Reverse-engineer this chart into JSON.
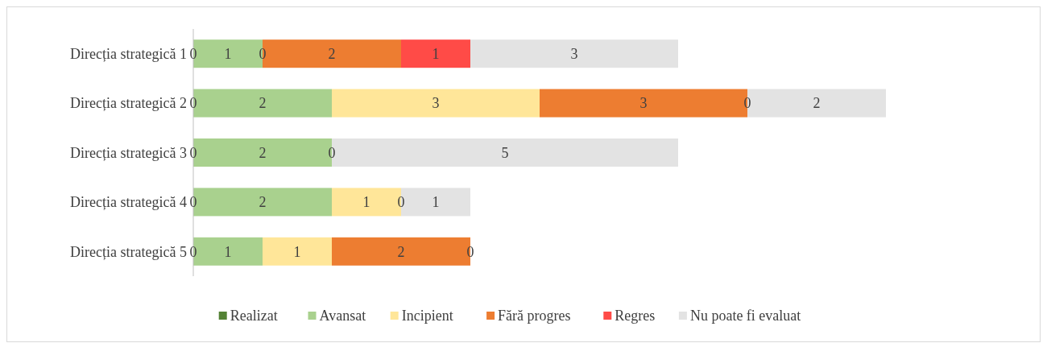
{
  "chart_data": {
    "type": "bar",
    "orientation": "horizontal",
    "stacked": true,
    "legend": "bottom",
    "categories": [
      "Direcția strategică 1",
      "Direcția strategică 2",
      "Direcția strategică 3",
      "Direcția strategică 4",
      "Direcția strategică 5"
    ],
    "series": [
      {
        "name": "Realizat",
        "color": "#548235",
        "values": [
          0,
          0,
          0,
          0,
          0
        ],
        "value_labels": [
          "0",
          "0",
          "0",
          "0",
          "0"
        ]
      },
      {
        "name": "Avansat",
        "color": "#a9d18e",
        "values": [
          1,
          2,
          2,
          2,
          1
        ],
        "value_labels": [
          "1",
          "2",
          "2",
          "2",
          "1"
        ]
      },
      {
        "name": "Incipient",
        "color": "#ffe699",
        "values": [
          0,
          3,
          0,
          1,
          1
        ],
        "value_labels": [
          "0",
          "3",
          "0",
          "1",
          "1"
        ]
      },
      {
        "name": "Fără progres",
        "color": "#ed7d31",
        "values": [
          2,
          3,
          0,
          0,
          2
        ],
        "value_labels": [
          "2",
          "3",
          null,
          "0",
          "2"
        ]
      },
      {
        "name": "Regres",
        "color": "#ff4b47",
        "values": [
          1,
          0,
          null,
          null,
          0
        ],
        "value_labels": [
          "1",
          "0",
          null,
          null,
          "0"
        ]
      },
      {
        "name": "Nu poate fi evaluat",
        "color": "#e3e3e3",
        "values": [
          3,
          2,
          5,
          1,
          null
        ],
        "value_labels": [
          "3",
          "2",
          "5",
          "1",
          null
        ]
      }
    ]
  }
}
